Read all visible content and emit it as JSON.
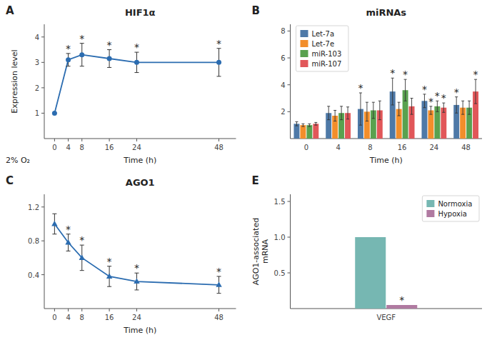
{
  "chart_data": [
    {
      "type": "line",
      "title": "HIF1α",
      "xlabel": "Time (h)",
      "ylabel": "Expression level",
      "x": [
        0,
        4,
        8,
        16,
        24,
        48
      ],
      "values": [
        1.0,
        3.1,
        3.3,
        3.15,
        3.0,
        3.0
      ],
      "errors": [
        0.0,
        0.25,
        0.45,
        0.35,
        0.4,
        0.55
      ],
      "xlim": [
        -3,
        53
      ],
      "xticks": [
        0,
        4,
        8,
        16,
        24,
        48
      ],
      "ylim": [
        0,
        4.5
      ],
      "yticks": [
        1,
        2,
        3,
        4
      ],
      "color": "#2b6cb0",
      "marker": "circle",
      "grid": false,
      "annotations": [
        {
          "text": "A",
          "position": "top-left"
        },
        {
          "text": "2% O₂",
          "position": "bottom-left"
        },
        {
          "text": "*",
          "index": 1
        },
        {
          "text": "*",
          "index": 2
        },
        {
          "text": "*",
          "index": 3
        },
        {
          "text": "*",
          "index": 4
        },
        {
          "text": "*",
          "index": 5
        }
      ]
    },
    {
      "type": "bar",
      "title": "miRNAs",
      "xlabel": "Time (h)",
      "categories": [
        "0",
        "4",
        "8",
        "16",
        "24",
        "48"
      ],
      "series": [
        {
          "name": "Let-7a",
          "color": "#4e79a7",
          "values": [
            1.1,
            1.9,
            2.2,
            3.5,
            2.8,
            2.5
          ],
          "errors": [
            0.15,
            0.5,
            1.2,
            1.0,
            0.5,
            0.6
          ]
        },
        {
          "name": "Let-7e",
          "color": "#f28e2b",
          "values": [
            1.0,
            1.7,
            2.0,
            2.2,
            2.1,
            2.3
          ],
          "errors": [
            0.1,
            0.4,
            0.7,
            0.5,
            0.3,
            0.5
          ]
        },
        {
          "name": "miR-103",
          "color": "#59a14f",
          "values": [
            1.0,
            1.9,
            2.1,
            3.6,
            2.4,
            2.3
          ],
          "errors": [
            0.1,
            0.5,
            0.6,
            0.8,
            0.4,
            0.5
          ]
        },
        {
          "name": "miR-107",
          "color": "#e15759",
          "values": [
            1.1,
            1.9,
            2.1,
            2.4,
            2.3,
            3.5
          ],
          "errors": [
            0.1,
            0.45,
            0.7,
            0.6,
            0.35,
            0.9
          ]
        }
      ],
      "ylim": [
        0,
        8.5
      ],
      "yticks": [
        2,
        4,
        6,
        8
      ],
      "legend": "top-left",
      "grid": false,
      "annotations": [
        {
          "text": "B",
          "position": "top-left"
        },
        {
          "text": "*",
          "series": 0,
          "index": 2
        },
        {
          "text": "*",
          "series": 0,
          "index": 3
        },
        {
          "text": "*",
          "series": 2,
          "index": 3
        },
        {
          "text": "*",
          "series": 0,
          "index": 4
        },
        {
          "text": "*",
          "series": 1,
          "index": 4
        },
        {
          "text": "*",
          "series": 2,
          "index": 4
        },
        {
          "text": "*",
          "series": 3,
          "index": 4
        },
        {
          "text": "*",
          "series": 0,
          "index": 5
        },
        {
          "text": "*",
          "series": 3,
          "index": 5
        }
      ]
    },
    {
      "type": "line",
      "title": "AGO1",
      "xlabel": "Time (h)",
      "x": [
        0,
        4,
        8,
        16,
        24,
        48
      ],
      "values": [
        1.0,
        0.78,
        0.6,
        0.38,
        0.32,
        0.28
      ],
      "errors": [
        0.12,
        0.1,
        0.15,
        0.12,
        0.1,
        0.1
      ],
      "xlim": [
        -3,
        53
      ],
      "xticks": [
        0,
        4,
        8,
        16,
        24,
        48
      ],
      "ylim": [
        0,
        1.35
      ],
      "yticks": [
        0.4,
        0.8,
        1.2
      ],
      "color": "#2b6cb0",
      "marker": "triangle",
      "grid": false,
      "annotations": [
        {
          "text": "C",
          "position": "top-left"
        },
        {
          "text": "*",
          "index": 1
        },
        {
          "text": "*",
          "index": 2
        },
        {
          "text": "*",
          "index": 3
        },
        {
          "text": "*",
          "index": 4
        },
        {
          "text": "*",
          "index": 5
        }
      ]
    },
    {
      "type": "bar",
      "ylabel": "AGO1-associated\nmRNA",
      "categories": [
        "VEGF"
      ],
      "series": [
        {
          "name": "Normoxia",
          "color": "#76b7b2",
          "values": [
            1.0
          ]
        },
        {
          "name": "Hypoxia",
          "color": "#b07aa1",
          "values": [
            0.05
          ]
        }
      ],
      "ylim": [
        0,
        1.6
      ],
      "yticks": [
        0.5,
        {
          "value": 1.0,
          "label": "1.0"
        },
        1.5
      ],
      "legend": "top-right",
      "grid": false,
      "annotations": [
        {
          "text": "E",
          "position": "top-left"
        },
        {
          "text": "*",
          "series": 1,
          "index": 0
        }
      ]
    }
  ]
}
